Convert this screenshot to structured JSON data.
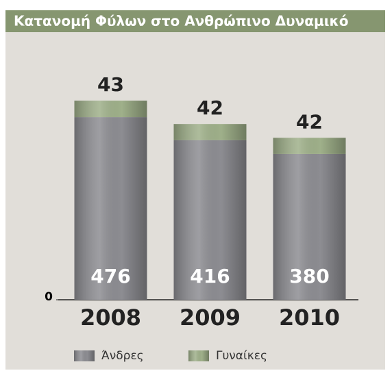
{
  "chart_data": {
    "type": "stacked-bar",
    "title": "Κατανομή Φύλων στο Ανθρώπινο Δυναμικό",
    "categories": [
      "2008",
      "2009",
      "2010"
    ],
    "series": [
      {
        "name": "Άνδρες",
        "color": "#8d8d92",
        "values": [
          476,
          416,
          380
        ]
      },
      {
        "name": "Γυναίκες",
        "color": "#9fb08a",
        "values": [
          43,
          42,
          42
        ]
      }
    ],
    "ylim": [
      0,
      560
    ],
    "yticks": [
      0
    ],
    "grid": false,
    "legend": "bottom"
  }
}
